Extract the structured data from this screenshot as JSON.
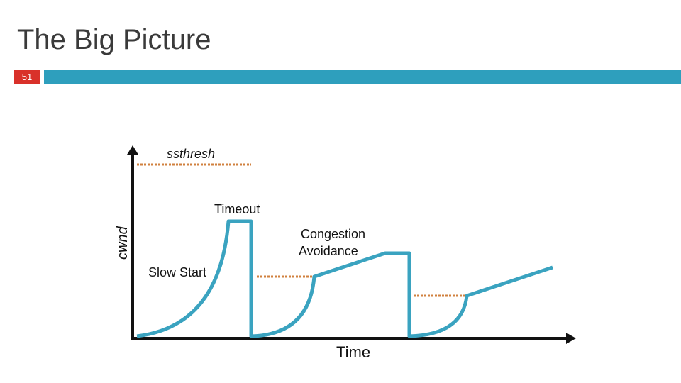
{
  "slide": {
    "title": "The Big Picture",
    "number": "51"
  },
  "colors": {
    "accent_bar": "#2e9fbd",
    "number_badge": "#d9312a",
    "curve": "#3aa3c0",
    "threshold": "#d0813f",
    "axis": "#111111"
  },
  "diagram": {
    "y_axis_label": "cwnd",
    "x_axis_label": "Time",
    "ssthresh_label": "ssthresh",
    "timeout_label": "Timeout",
    "slow_start_label": "Slow Start",
    "congestion_avoidance_line1": "Congestion",
    "congestion_avoidance_line2": "Avoidance"
  }
}
